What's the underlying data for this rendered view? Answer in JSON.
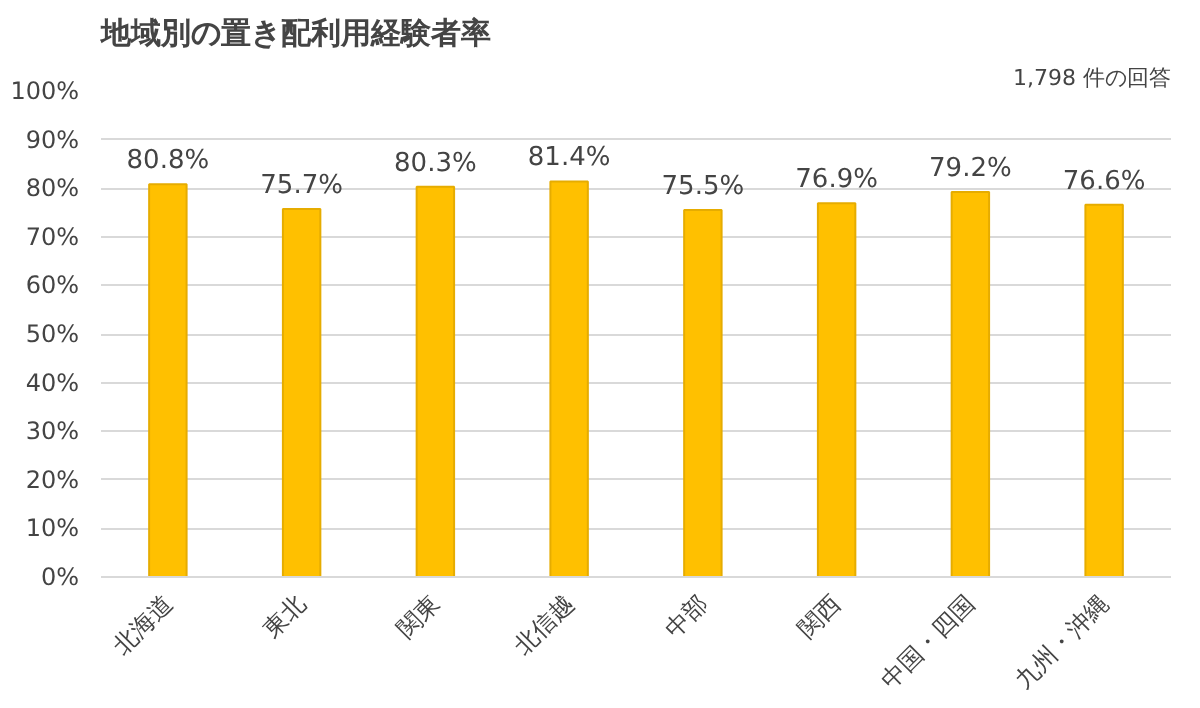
{
  "chart_data": {
    "type": "bar",
    "title": "地域別の置き配利用経験者率",
    "annotations": [
      "1,798 件の回答"
    ],
    "categories": [
      "北海道",
      "東北",
      "関東",
      "北信越",
      "中部",
      "関西",
      "中国・四国",
      "九州・沖縄"
    ],
    "values": [
      80.8,
      75.7,
      80.3,
      81.4,
      75.5,
      76.9,
      79.2,
      76.6
    ],
    "value_labels": [
      "80.8%",
      "75.7%",
      "80.3%",
      "81.4%",
      "75.5%",
      "76.9%",
      "79.2%",
      "76.6%"
    ],
    "color": "#ffc000",
    "ylim": [
      0,
      100
    ],
    "yticks": [
      {
        "value": 0,
        "label": "0%"
      },
      {
        "value": 10,
        "label": "10%"
      },
      {
        "value": 20,
        "label": "20%"
      },
      {
        "value": 30,
        "label": "30%"
      },
      {
        "value": 40,
        "label": "40%"
      },
      {
        "value": 50,
        "label": "50%"
      },
      {
        "value": 60,
        "label": "60%"
      },
      {
        "value": 70,
        "label": "70%"
      },
      {
        "value": 80,
        "label": "80%"
      },
      {
        "value": 90,
        "label": "90%"
      },
      {
        "value": 100,
        "label": "100%"
      }
    ],
    "grid": "y"
  }
}
